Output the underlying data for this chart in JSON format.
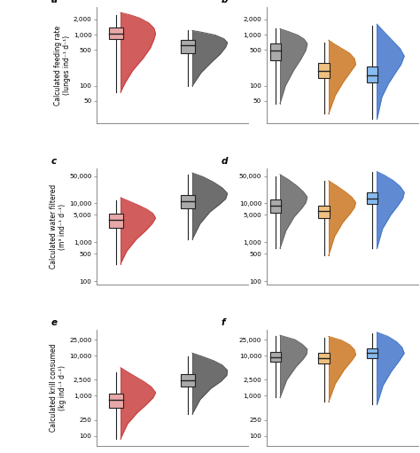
{
  "panels": {
    "a": {
      "label": "a",
      "col": 0,
      "row": 0,
      "ylabel": "Calculated feeding rate\n(lunges ind⁻¹ d⁻¹)",
      "ylim_log": [
        18,
        3500
      ],
      "yticks": [
        50,
        100,
        500,
        1000,
        2000
      ],
      "ytick_labels": [
        "50",
        "100",
        "500",
        "1,000",
        "2,000"
      ],
      "groups": [
        {
          "color": "#c94040",
          "box_color": "#e8a8a8",
          "median": 1050,
          "q1": 820,
          "q3": 1350,
          "whislo": 75,
          "whishi": 2400,
          "kde_y": [
            75,
            120,
            200,
            350,
            550,
            800,
            1050,
            1350,
            1700,
            2100,
            2400,
            2700
          ],
          "kde_x": [
            0.0,
            0.15,
            0.35,
            0.65,
            0.85,
            0.95,
            1.0,
            0.95,
            0.8,
            0.55,
            0.3,
            0.0
          ]
        },
        {
          "color": "#555555",
          "box_color": "#aaaaaa",
          "median": 620,
          "q1": 430,
          "q3": 800,
          "whislo": 100,
          "whishi": 1200,
          "kde_y": [
            100,
            180,
            290,
            420,
            570,
            700,
            830,
            980,
            1100,
            1200
          ],
          "kde_x": [
            0.0,
            0.25,
            0.55,
            0.8,
            0.95,
            1.0,
            0.9,
            0.65,
            0.3,
            0.0
          ]
        }
      ]
    },
    "b": {
      "label": "b",
      "col": 1,
      "row": 0,
      "ylabel": "",
      "ylim_log": [
        18,
        3500
      ],
      "yticks": [
        50,
        100,
        500,
        1000,
        2000
      ],
      "ytick_labels": [
        "50",
        "100",
        "500",
        "1,000",
        "2,000"
      ],
      "groups": [
        {
          "color": "#666666",
          "box_color": "#aaaaaa",
          "median": 480,
          "q1": 320,
          "q3": 680,
          "whislo": 45,
          "whishi": 1300,
          "kde_y": [
            45,
            100,
            200,
            340,
            500,
            670,
            820,
            980,
            1150,
            1300
          ],
          "kde_x": [
            0.0,
            0.2,
            0.5,
            0.78,
            0.95,
            1.0,
            0.88,
            0.65,
            0.3,
            0.0
          ]
        },
        {
          "color": "#cc7722",
          "box_color": "#f0c080",
          "median": 195,
          "q1": 140,
          "q3": 275,
          "whislo": 28,
          "whishi": 700,
          "kde_y": [
            28,
            65,
            120,
            190,
            260,
            340,
            430,
            530,
            650,
            780
          ],
          "kde_x": [
            0.0,
            0.25,
            0.55,
            0.82,
            1.0,
            0.95,
            0.78,
            0.5,
            0.22,
            0.0
          ]
        },
        {
          "color": "#4477cc",
          "box_color": "#88bbee",
          "median": 160,
          "q1": 115,
          "q3": 235,
          "whislo": 22,
          "whishi": 1500,
          "kde_y": [
            22,
            60,
            110,
            180,
            260,
            380,
            530,
            750,
            1100,
            1600
          ],
          "kde_x": [
            0.0,
            0.18,
            0.42,
            0.68,
            0.88,
            1.0,
            0.85,
            0.58,
            0.28,
            0.0
          ]
        }
      ]
    },
    "c": {
      "label": "c",
      "col": 0,
      "row": 1,
      "ylabel": "Calculated water filtered\n(m³ ind⁻¹ d⁻¹)",
      "ylim_log": [
        80,
        80000
      ],
      "yticks": [
        100,
        500,
        1000,
        5000,
        10000,
        50000
      ],
      "ytick_labels": [
        "100",
        "500",
        "1,000",
        "5,000",
        "10,000",
        "50,000"
      ],
      "groups": [
        {
          "color": "#c94040",
          "box_color": "#e8a8a8",
          "median": 3800,
          "q1": 2300,
          "q3": 5500,
          "whislo": 280,
          "whishi": 12000,
          "kde_y": [
            280,
            600,
            1200,
            2000,
            3000,
            4200,
            5500,
            7000,
            9000,
            11500,
            14000
          ],
          "kde_x": [
            0.0,
            0.18,
            0.45,
            0.72,
            0.9,
            1.0,
            0.92,
            0.75,
            0.5,
            0.22,
            0.0
          ]
        },
        {
          "color": "#555555",
          "box_color": "#aaaaaa",
          "median": 11000,
          "q1": 7500,
          "q3": 16000,
          "whislo": 1200,
          "whishi": 55000,
          "kde_y": [
            1200,
            3000,
            6000,
            9500,
            13000,
            18000,
            25000,
            35000,
            48000,
            60000
          ],
          "kde_x": [
            0.0,
            0.22,
            0.5,
            0.78,
            0.95,
            1.0,
            0.85,
            0.6,
            0.3,
            0.0
          ]
        }
      ]
    },
    "d": {
      "label": "d",
      "col": 1,
      "row": 1,
      "ylabel": "",
      "ylim_log": [
        80,
        80000
      ],
      "yticks": [
        100,
        500,
        1000,
        5000,
        10000,
        50000
      ],
      "ytick_labels": [
        "100",
        "500",
        "1,000",
        "5,000",
        "10,000",
        "50,000"
      ],
      "groups": [
        {
          "color": "#666666",
          "box_color": "#aaaaaa",
          "median": 8500,
          "q1": 5800,
          "q3": 12500,
          "whislo": 700,
          "whishi": 50000,
          "kde_y": [
            700,
            2000,
            4500,
            7500,
            10500,
            14500,
            20000,
            28000,
            40000,
            55000
          ],
          "kde_x": [
            0.0,
            0.22,
            0.52,
            0.8,
            0.95,
            1.0,
            0.85,
            0.62,
            0.32,
            0.0
          ]
        },
        {
          "color": "#cc7722",
          "box_color": "#f0c080",
          "median": 6200,
          "q1": 4200,
          "q3": 8800,
          "whislo": 450,
          "whishi": 38000,
          "kde_y": [
            450,
            1400,
            3200,
            5500,
            7800,
            10500,
            14500,
            20000,
            28000,
            38000
          ],
          "kde_x": [
            0.0,
            0.22,
            0.52,
            0.8,
            0.95,
            1.0,
            0.85,
            0.6,
            0.3,
            0.0
          ]
        },
        {
          "color": "#4477cc",
          "box_color": "#88bbee",
          "median": 13500,
          "q1": 9500,
          "q3": 19000,
          "whislo": 700,
          "whishi": 62000,
          "kde_y": [
            700,
            2200,
            5000,
            9000,
            13500,
            19000,
            27000,
            38000,
            52000,
            65000
          ],
          "kde_x": [
            0.0,
            0.2,
            0.5,
            0.78,
            0.95,
            1.0,
            0.85,
            0.6,
            0.28,
            0.0
          ]
        }
      ]
    },
    "e": {
      "label": "e",
      "col": 0,
      "row": 2,
      "ylabel": "Calculated krill consumed\n(kg ind⁻¹ d⁻¹)",
      "ylim_log": [
        55,
        45000
      ],
      "yticks": [
        100,
        250,
        1000,
        2500,
        10000,
        25000
      ],
      "ytick_labels": [
        "100",
        "250",
        "1,000",
        "2,500",
        "10,000",
        "25,000"
      ],
      "groups": [
        {
          "color": "#c94040",
          "box_color": "#e8a8a8",
          "median": 800,
          "q1": 500,
          "q3": 1150,
          "whislo": 85,
          "whishi": 3800,
          "kde_y": [
            85,
            200,
            380,
            620,
            900,
            1200,
            1650,
            2200,
            3000,
            4000,
            5000
          ],
          "kde_x": [
            0.0,
            0.2,
            0.48,
            0.75,
            0.93,
            1.0,
            0.88,
            0.68,
            0.42,
            0.18,
            0.0
          ]
        },
        {
          "color": "#555555",
          "box_color": "#aaaaaa",
          "median": 2400,
          "q1": 1700,
          "q3": 3500,
          "whislo": 350,
          "whishi": 9500,
          "kde_y": [
            350,
            800,
            1500,
            2300,
            3200,
            4300,
            5800,
            7500,
            9500,
            11500
          ],
          "kde_x": [
            0.0,
            0.22,
            0.52,
            0.82,
            0.98,
            1.0,
            0.85,
            0.6,
            0.28,
            0.0
          ]
        }
      ]
    },
    "f": {
      "label": "f",
      "col": 1,
      "row": 2,
      "ylabel": "",
      "ylim_log": [
        55,
        45000
      ],
      "yticks": [
        100,
        250,
        1000,
        2500,
        10000,
        25000
      ],
      "ytick_labels": [
        "100",
        "250",
        "1,000",
        "2,500",
        "10,000",
        "25,000"
      ],
      "groups": [
        {
          "color": "#666666",
          "box_color": "#aaaaaa",
          "median": 9200,
          "q1": 7000,
          "q3": 12500,
          "whislo": 900,
          "whishi": 30000,
          "kde_y": [
            900,
            2500,
            5200,
            8200,
            11000,
            14500,
            19000,
            25000,
            32000
          ],
          "kde_x": [
            0.0,
            0.25,
            0.58,
            0.85,
            0.98,
            1.0,
            0.82,
            0.55,
            0.0
          ]
        },
        {
          "color": "#cc7722",
          "box_color": "#f0c080",
          "median": 8800,
          "q1": 6200,
          "q3": 11500,
          "whislo": 700,
          "whishi": 28000,
          "kde_y": [
            700,
            2000,
            4500,
            7500,
            10500,
            14000,
            18500,
            24000,
            30000
          ],
          "kde_x": [
            0.0,
            0.25,
            0.58,
            0.85,
            1.0,
            0.95,
            0.78,
            0.48,
            0.0
          ]
        },
        {
          "color": "#4477cc",
          "box_color": "#88bbee",
          "median": 11500,
          "q1": 8500,
          "q3": 15000,
          "whislo": 600,
          "whishi": 35000,
          "kde_y": [
            600,
            1800,
            4000,
            7500,
            11500,
            16000,
            22000,
            30000,
            38000
          ],
          "kde_x": [
            0.0,
            0.22,
            0.52,
            0.82,
            1.0,
            0.92,
            0.72,
            0.4,
            0.0
          ]
        }
      ]
    }
  },
  "background_color": "#ffffff",
  "panel_order": [
    "a",
    "b",
    "c",
    "d",
    "e",
    "f"
  ]
}
